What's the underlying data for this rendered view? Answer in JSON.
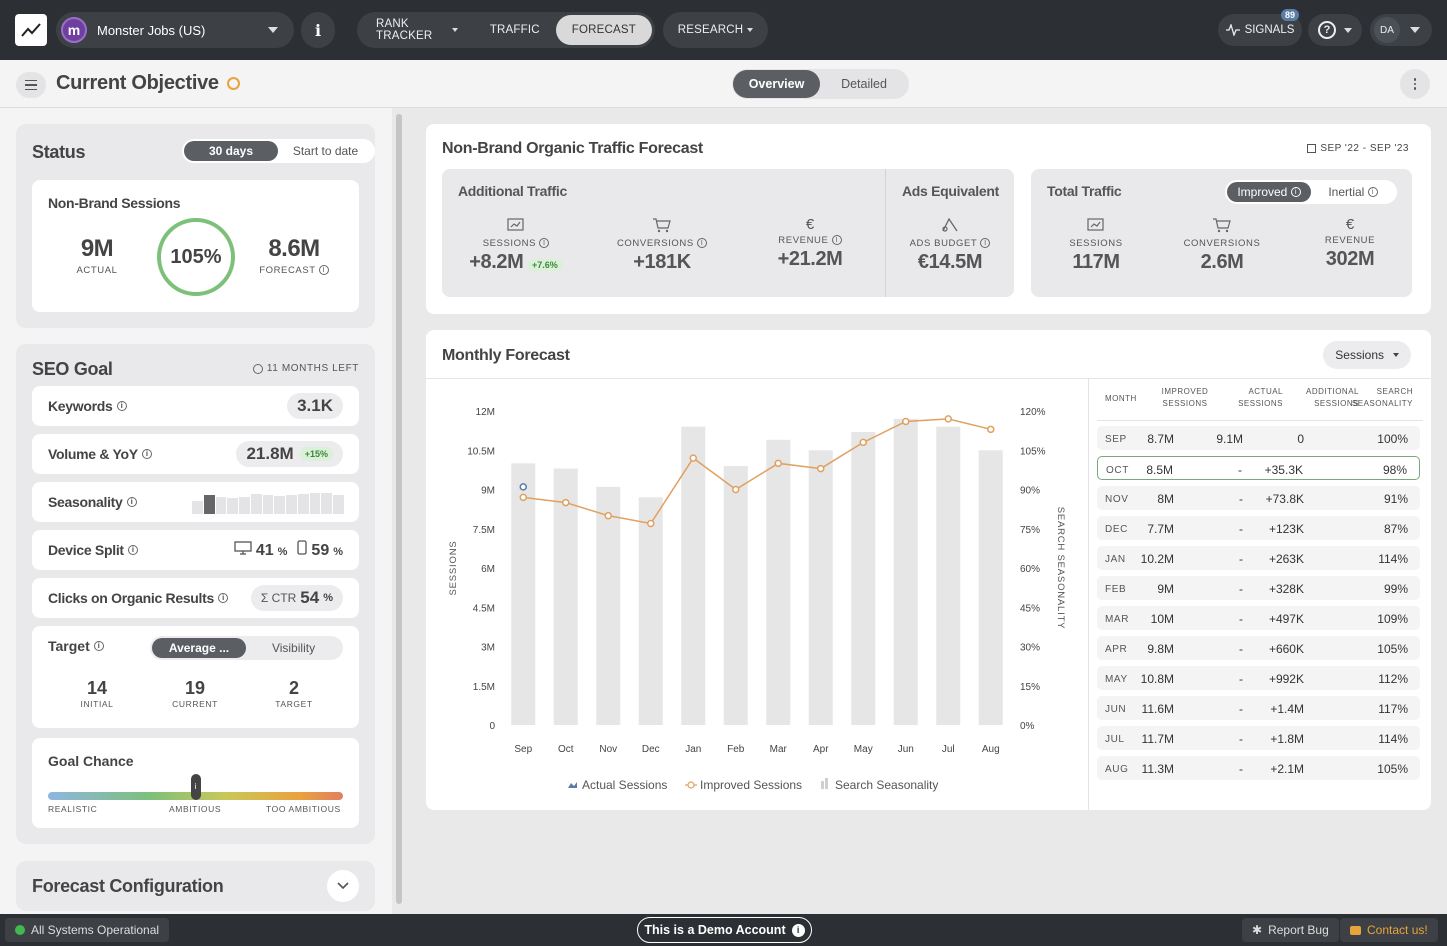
{
  "topbar": {
    "project": "Monster Jobs (US)",
    "project_initial": "m",
    "nav": [
      "RANK TRACKER",
      "TRAFFIC",
      "FORECAST"
    ],
    "nav2": "RESEARCH",
    "signals_label": "SIGNALS",
    "signals_count": "89",
    "user_initials": "DA"
  },
  "subbar": {
    "title": "Current Objective",
    "view_tabs": [
      "Overview",
      "Detailed"
    ]
  },
  "status": {
    "title": "Status",
    "tabs": [
      "30 days",
      "Start to date"
    ],
    "card_title": "Non-Brand Sessions",
    "actual_value": "9M",
    "actual_label": "ACTUAL",
    "percent": "105%",
    "forecast_value": "8.6M",
    "forecast_label": "FORECAST"
  },
  "seo_goal": {
    "title": "SEO Goal",
    "months_left": "11 MONTHS LEFT",
    "keywords_label": "Keywords",
    "keywords_value": "3.1K",
    "volume_label": "Volume & YoY",
    "volume_value": "21.8M",
    "volume_delta": "+15%",
    "seasonality_label": "Seasonality",
    "seasonality_bars": [
      0.55,
      0.8,
      0.7,
      0.65,
      0.72,
      0.85,
      0.8,
      0.75,
      0.8,
      0.82,
      0.88,
      0.86,
      0.8
    ],
    "device_label": "Device Split",
    "desktop_pct": "41",
    "mobile_pct": "59",
    "pct_sign": "%",
    "clicks_label": "Clicks on Organic Results",
    "ctr_prefix": "Σ CTR",
    "ctr_value": "54",
    "target_label": "Target",
    "target_tabs": [
      "Average ...",
      "Visibility"
    ],
    "initial_value": "14",
    "initial_label": "INITIAL",
    "current_value": "19",
    "current_label": "CURRENT",
    "target_value": "2",
    "target_cap": "TARGET",
    "goal_chance_label": "Goal Chance",
    "goal_scale": [
      "REALISTIC",
      "AMBITIOUS",
      "TOO AMBITIOUS"
    ],
    "goal_chance_position": 0.5
  },
  "forecast_config": {
    "title": "Forecast Configuration"
  },
  "traffic_forecast": {
    "title": "Non-Brand Organic Traffic Forecast",
    "date_range": "SEP '22 - SEP '23",
    "additional_title": "Additional Traffic",
    "ads_title": "Ads Equivalent",
    "total_title": "Total Traffic",
    "total_tabs": [
      "Improved",
      "Inertial"
    ],
    "sessions_label": "SESSIONS",
    "conversions_label": "CONVERSIONS",
    "revenue_label": "REVENUE",
    "ads_budget_label": "ADS BUDGET",
    "add_sessions": "+8.2M",
    "add_sessions_delta": "+7.6%",
    "add_conversions": "+181K",
    "add_revenue": "+21.2M",
    "ads_budget": "€14.5M",
    "total_sessions": "117M",
    "total_conversions": "2.6M",
    "total_revenue": "302M",
    "euro_icon": "€"
  },
  "monthly": {
    "title": "Monthly Forecast",
    "dropdown": "Sessions",
    "table_headers": [
      "MONTH",
      "IMPROVED SESSIONS",
      "ACTUAL SESSIONS",
      "ADDITIONAL SESSIONS",
      "SEARCH SEASONALITY"
    ],
    "rows": [
      [
        "SEP",
        "8.7M",
        "9.1M",
        "0",
        "100%"
      ],
      [
        "OCT",
        "8.5M",
        "-",
        "+35.3K",
        "98%"
      ],
      [
        "NOV",
        "8M",
        "-",
        "+73.8K",
        "91%"
      ],
      [
        "DEC",
        "7.7M",
        "-",
        "+123K",
        "87%"
      ],
      [
        "JAN",
        "10.2M",
        "-",
        "+263K",
        "114%"
      ],
      [
        "FEB",
        "9M",
        "-",
        "+328K",
        "99%"
      ],
      [
        "MAR",
        "10M",
        "-",
        "+497K",
        "109%"
      ],
      [
        "APR",
        "9.8M",
        "-",
        "+660K",
        "105%"
      ],
      [
        "MAY",
        "10.8M",
        "-",
        "+992K",
        "112%"
      ],
      [
        "JUN",
        "11.6M",
        "-",
        "+1.4M",
        "117%"
      ],
      [
        "JUL",
        "11.7M",
        "-",
        "+1.8M",
        "114%"
      ],
      [
        "AUG",
        "11.3M",
        "-",
        "+2.1M",
        "105%"
      ]
    ],
    "highlight_row": 1
  },
  "chart_data": {
    "type": "bar",
    "categories": [
      "Sep",
      "Oct",
      "Nov",
      "Dec",
      "Jan",
      "Feb",
      "Mar",
      "Apr",
      "May",
      "Jun",
      "Jul",
      "Aug"
    ],
    "ylabel": "SESSIONS",
    "y2label": "SEARCH SEASONALITY",
    "ylim": [
      0,
      12000000
    ],
    "y_ticks": [
      "0",
      "1.5M",
      "3M",
      "4.5M",
      "6M",
      "7.5M",
      "9M",
      "10.5M",
      "12M"
    ],
    "y2lim": [
      0,
      120
    ],
    "y2_ticks": [
      "0%",
      "15%",
      "30%",
      "45%",
      "60%",
      "75%",
      "90%",
      "105%",
      "120%"
    ],
    "series": [
      {
        "name": "Actual Sessions",
        "values": [
          9100000,
          null,
          null,
          null,
          null,
          null,
          null,
          null,
          null,
          null,
          null,
          null
        ],
        "color": "#5a7da8"
      },
      {
        "name": "Improved Sessions",
        "values": [
          8700000,
          8500000,
          8000000,
          7700000,
          10200000,
          9000000,
          10000000,
          9800000,
          10800000,
          11600000,
          11700000,
          11300000
        ],
        "color": "#e0a060"
      },
      {
        "name": "Search Seasonality",
        "values": [
          100,
          98,
          91,
          87,
          114,
          99,
          109,
          105,
          112,
          117,
          114,
          105
        ],
        "color": "#e6e6e6"
      }
    ],
    "legend_position": "bottom"
  },
  "footer": {
    "status": "All Systems Operational",
    "demo": "This is a Demo Account",
    "report": "Report Bug",
    "contact": "Contact us!"
  },
  "colors": {
    "dark": "#2c2f33",
    "accent_green": "#7dc07a",
    "orange": "#e0a060",
    "blue": "#5a7da8"
  }
}
